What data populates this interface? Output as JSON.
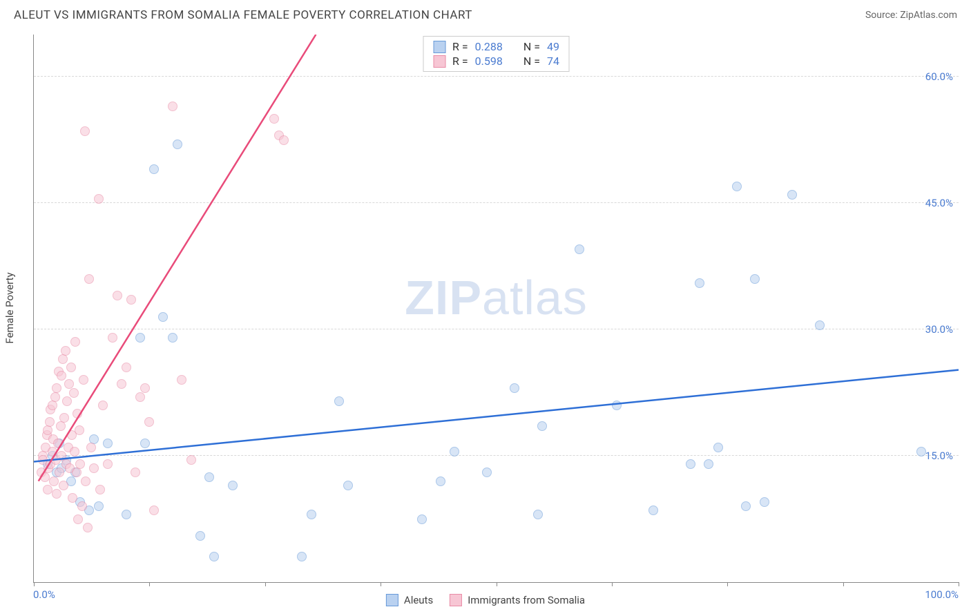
{
  "header": {
    "title": "ALEUT VS IMMIGRANTS FROM SOMALIA FEMALE POVERTY CORRELATION CHART",
    "source": "Source: ZipAtlas.com"
  },
  "chart": {
    "type": "scatter",
    "ylabel": "Female Poverty",
    "watermark_a": "ZIP",
    "watermark_b": "atlas",
    "xlim": [
      0,
      100
    ],
    "ylim": [
      0,
      65
    ],
    "xtick_positions": [
      0,
      12.5,
      25,
      37.5,
      50,
      62.5,
      75,
      87.5,
      100
    ],
    "xtick_labels": {
      "left": "0.0%",
      "right": "100.0%"
    },
    "ytick_positions": [
      15,
      30,
      45,
      60
    ],
    "ytick_labels": [
      "15.0%",
      "30.0%",
      "45.0%",
      "60.0%"
    ],
    "grid_color": "#d8d8d8",
    "background_color": "#ffffff",
    "axis_color": "#888888",
    "tick_label_color": "#4a7bd0",
    "marker_radius": 7,
    "marker_opacity": 0.55,
    "series": [
      {
        "name": "Aleuts",
        "fill": "#b9d1f0",
        "stroke": "#6699d8",
        "line_color": "#2e6fd6",
        "line_width": 2.5,
        "R": "0.288",
        "N": "49",
        "trend": {
          "x1": 0,
          "y1": 14.3,
          "x2": 100,
          "y2": 25.2
        },
        "points": [
          [
            1.5,
            14.0
          ],
          [
            2.0,
            15.0
          ],
          [
            2.5,
            13.0
          ],
          [
            3.0,
            13.5
          ],
          [
            3.5,
            14.5
          ],
          [
            4.0,
            12.0
          ],
          [
            2.8,
            16.5
          ],
          [
            4.5,
            13.0
          ],
          [
            5.0,
            9.5
          ],
          [
            6.0,
            8.5
          ],
          [
            6.5,
            17.0
          ],
          [
            7.0,
            9.0
          ],
          [
            8.0,
            16.5
          ],
          [
            10.0,
            8.0
          ],
          [
            11.5,
            29.0
          ],
          [
            12.0,
            16.5
          ],
          [
            13.0,
            49.0
          ],
          [
            14.0,
            31.5
          ],
          [
            15.0,
            29.0
          ],
          [
            15.5,
            52.0
          ],
          [
            18.0,
            5.5
          ],
          [
            19.0,
            12.5
          ],
          [
            19.5,
            3.0
          ],
          [
            21.5,
            11.5
          ],
          [
            29.0,
            3.0
          ],
          [
            30.0,
            8.0
          ],
          [
            33.0,
            21.5
          ],
          [
            34.0,
            11.5
          ],
          [
            42.0,
            7.5
          ],
          [
            44.0,
            12.0
          ],
          [
            45.5,
            15.5
          ],
          [
            49.0,
            13.0
          ],
          [
            52.0,
            23.0
          ],
          [
            54.5,
            8.0
          ],
          [
            55.0,
            18.5
          ],
          [
            59.0,
            39.5
          ],
          [
            63.0,
            21.0
          ],
          [
            67.0,
            8.5
          ],
          [
            71.0,
            14.0
          ],
          [
            72.0,
            35.5
          ],
          [
            73.0,
            14.0
          ],
          [
            74.0,
            16.0
          ],
          [
            76.0,
            47.0
          ],
          [
            77.0,
            9.0
          ],
          [
            78.0,
            36.0
          ],
          [
            79.0,
            9.5
          ],
          [
            82.0,
            46.0
          ],
          [
            85.0,
            30.5
          ],
          [
            96.0,
            15.5
          ]
        ]
      },
      {
        "name": "Immigrants from Somalia",
        "fill": "#f7c6d4",
        "stroke": "#e88aa5",
        "line_color": "#e94b7a",
        "line_width": 2.5,
        "R": "0.598",
        "N": "74",
        "trend": {
          "x1": 0.5,
          "y1": 12.0,
          "x2": 30.5,
          "y2": 65.0
        },
        "points": [
          [
            0.8,
            13.0
          ],
          [
            1.0,
            15.0
          ],
          [
            1.0,
            14.5
          ],
          [
            1.2,
            12.5
          ],
          [
            1.3,
            16.0
          ],
          [
            1.4,
            17.5
          ],
          [
            1.5,
            11.0
          ],
          [
            1.5,
            18.0
          ],
          [
            1.6,
            13.5
          ],
          [
            1.7,
            19.0
          ],
          [
            1.8,
            14.0
          ],
          [
            1.8,
            20.5
          ],
          [
            2.0,
            15.5
          ],
          [
            2.0,
            21.0
          ],
          [
            2.1,
            17.0
          ],
          [
            2.2,
            12.0
          ],
          [
            2.3,
            22.0
          ],
          [
            2.4,
            14.5
          ],
          [
            2.5,
            23.0
          ],
          [
            2.5,
            10.5
          ],
          [
            2.6,
            16.5
          ],
          [
            2.7,
            25.0
          ],
          [
            2.8,
            13.0
          ],
          [
            2.9,
            18.5
          ],
          [
            3.0,
            24.5
          ],
          [
            3.0,
            15.0
          ],
          [
            3.1,
            26.5
          ],
          [
            3.2,
            11.5
          ],
          [
            3.3,
            19.5
          ],
          [
            3.4,
            27.5
          ],
          [
            3.5,
            14.0
          ],
          [
            3.6,
            21.5
          ],
          [
            3.7,
            16.0
          ],
          [
            3.8,
            23.5
          ],
          [
            3.9,
            13.5
          ],
          [
            4.0,
            25.5
          ],
          [
            4.1,
            17.5
          ],
          [
            4.2,
            10.0
          ],
          [
            4.3,
            22.5
          ],
          [
            4.4,
            15.5
          ],
          [
            4.5,
            28.5
          ],
          [
            4.6,
            13.0
          ],
          [
            4.7,
            20.0
          ],
          [
            4.8,
            7.5
          ],
          [
            4.9,
            18.0
          ],
          [
            5.0,
            14.0
          ],
          [
            5.2,
            9.0
          ],
          [
            5.4,
            24.0
          ],
          [
            5.5,
            53.5
          ],
          [
            5.6,
            12.0
          ],
          [
            5.8,
            6.5
          ],
          [
            6.0,
            36.0
          ],
          [
            6.2,
            16.0
          ],
          [
            6.5,
            13.5
          ],
          [
            7.0,
            45.5
          ],
          [
            7.2,
            11.0
          ],
          [
            7.5,
            21.0
          ],
          [
            8.0,
            14.0
          ],
          [
            8.5,
            29.0
          ],
          [
            9.0,
            34.0
          ],
          [
            9.5,
            23.5
          ],
          [
            10.0,
            25.5
          ],
          [
            10.5,
            33.5
          ],
          [
            11.0,
            13.0
          ],
          [
            11.5,
            22.0
          ],
          [
            12.0,
            23.0
          ],
          [
            12.5,
            19.0
          ],
          [
            13.0,
            8.5
          ],
          [
            15.0,
            56.5
          ],
          [
            16.0,
            24.0
          ],
          [
            17.0,
            14.5
          ],
          [
            26.0,
            55.0
          ],
          [
            26.5,
            53.0
          ],
          [
            27.0,
            52.5
          ]
        ]
      }
    ],
    "legend_top": {
      "R_label": "R =",
      "N_label": "N ="
    },
    "legend_bottom_labels": [
      "Aleuts",
      "Immigrants from Somalia"
    ]
  }
}
